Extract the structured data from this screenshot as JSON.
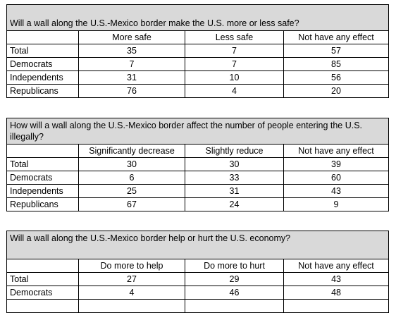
{
  "tables": [
    {
      "question": "Will a wall along the U.S.-Mexico border make the U.S. more or less safe?",
      "columns": [
        "More safe",
        "Less safe",
        "Not have any effect"
      ],
      "rows": [
        {
          "label": "Total",
          "values": [
            35,
            7,
            57
          ]
        },
        {
          "label": "Democrats",
          "values": [
            7,
            7,
            85
          ]
        },
        {
          "label": "Independents",
          "values": [
            31,
            10,
            56
          ]
        },
        {
          "label": "Republicans",
          "values": [
            76,
            4,
            20
          ]
        }
      ]
    },
    {
      "question": "How will a wall along the U.S.-Mexico border affect the number of people entering the U.S. illegally?",
      "columns": [
        "Significantly decrease",
        "Slightly reduce",
        "Not have any effect"
      ],
      "rows": [
        {
          "label": "Total",
          "values": [
            30,
            30,
            39
          ]
        },
        {
          "label": "Democrats",
          "values": [
            6,
            33,
            60
          ]
        },
        {
          "label": "Independents",
          "values": [
            25,
            31,
            43
          ]
        },
        {
          "label": "Republicans",
          "values": [
            67,
            24,
            9
          ]
        }
      ]
    },
    {
      "question": "Will a wall along the U.S.-Mexico border help or hurt the U.S. economy?",
      "columns": [
        "Do more to help",
        "Do more to hurt",
        "Not have any effect"
      ],
      "rows": [
        {
          "label": "Total",
          "values": [
            27,
            29,
            43
          ]
        },
        {
          "label": "Democrats",
          "values": [
            4,
            46,
            48
          ]
        }
      ]
    }
  ]
}
